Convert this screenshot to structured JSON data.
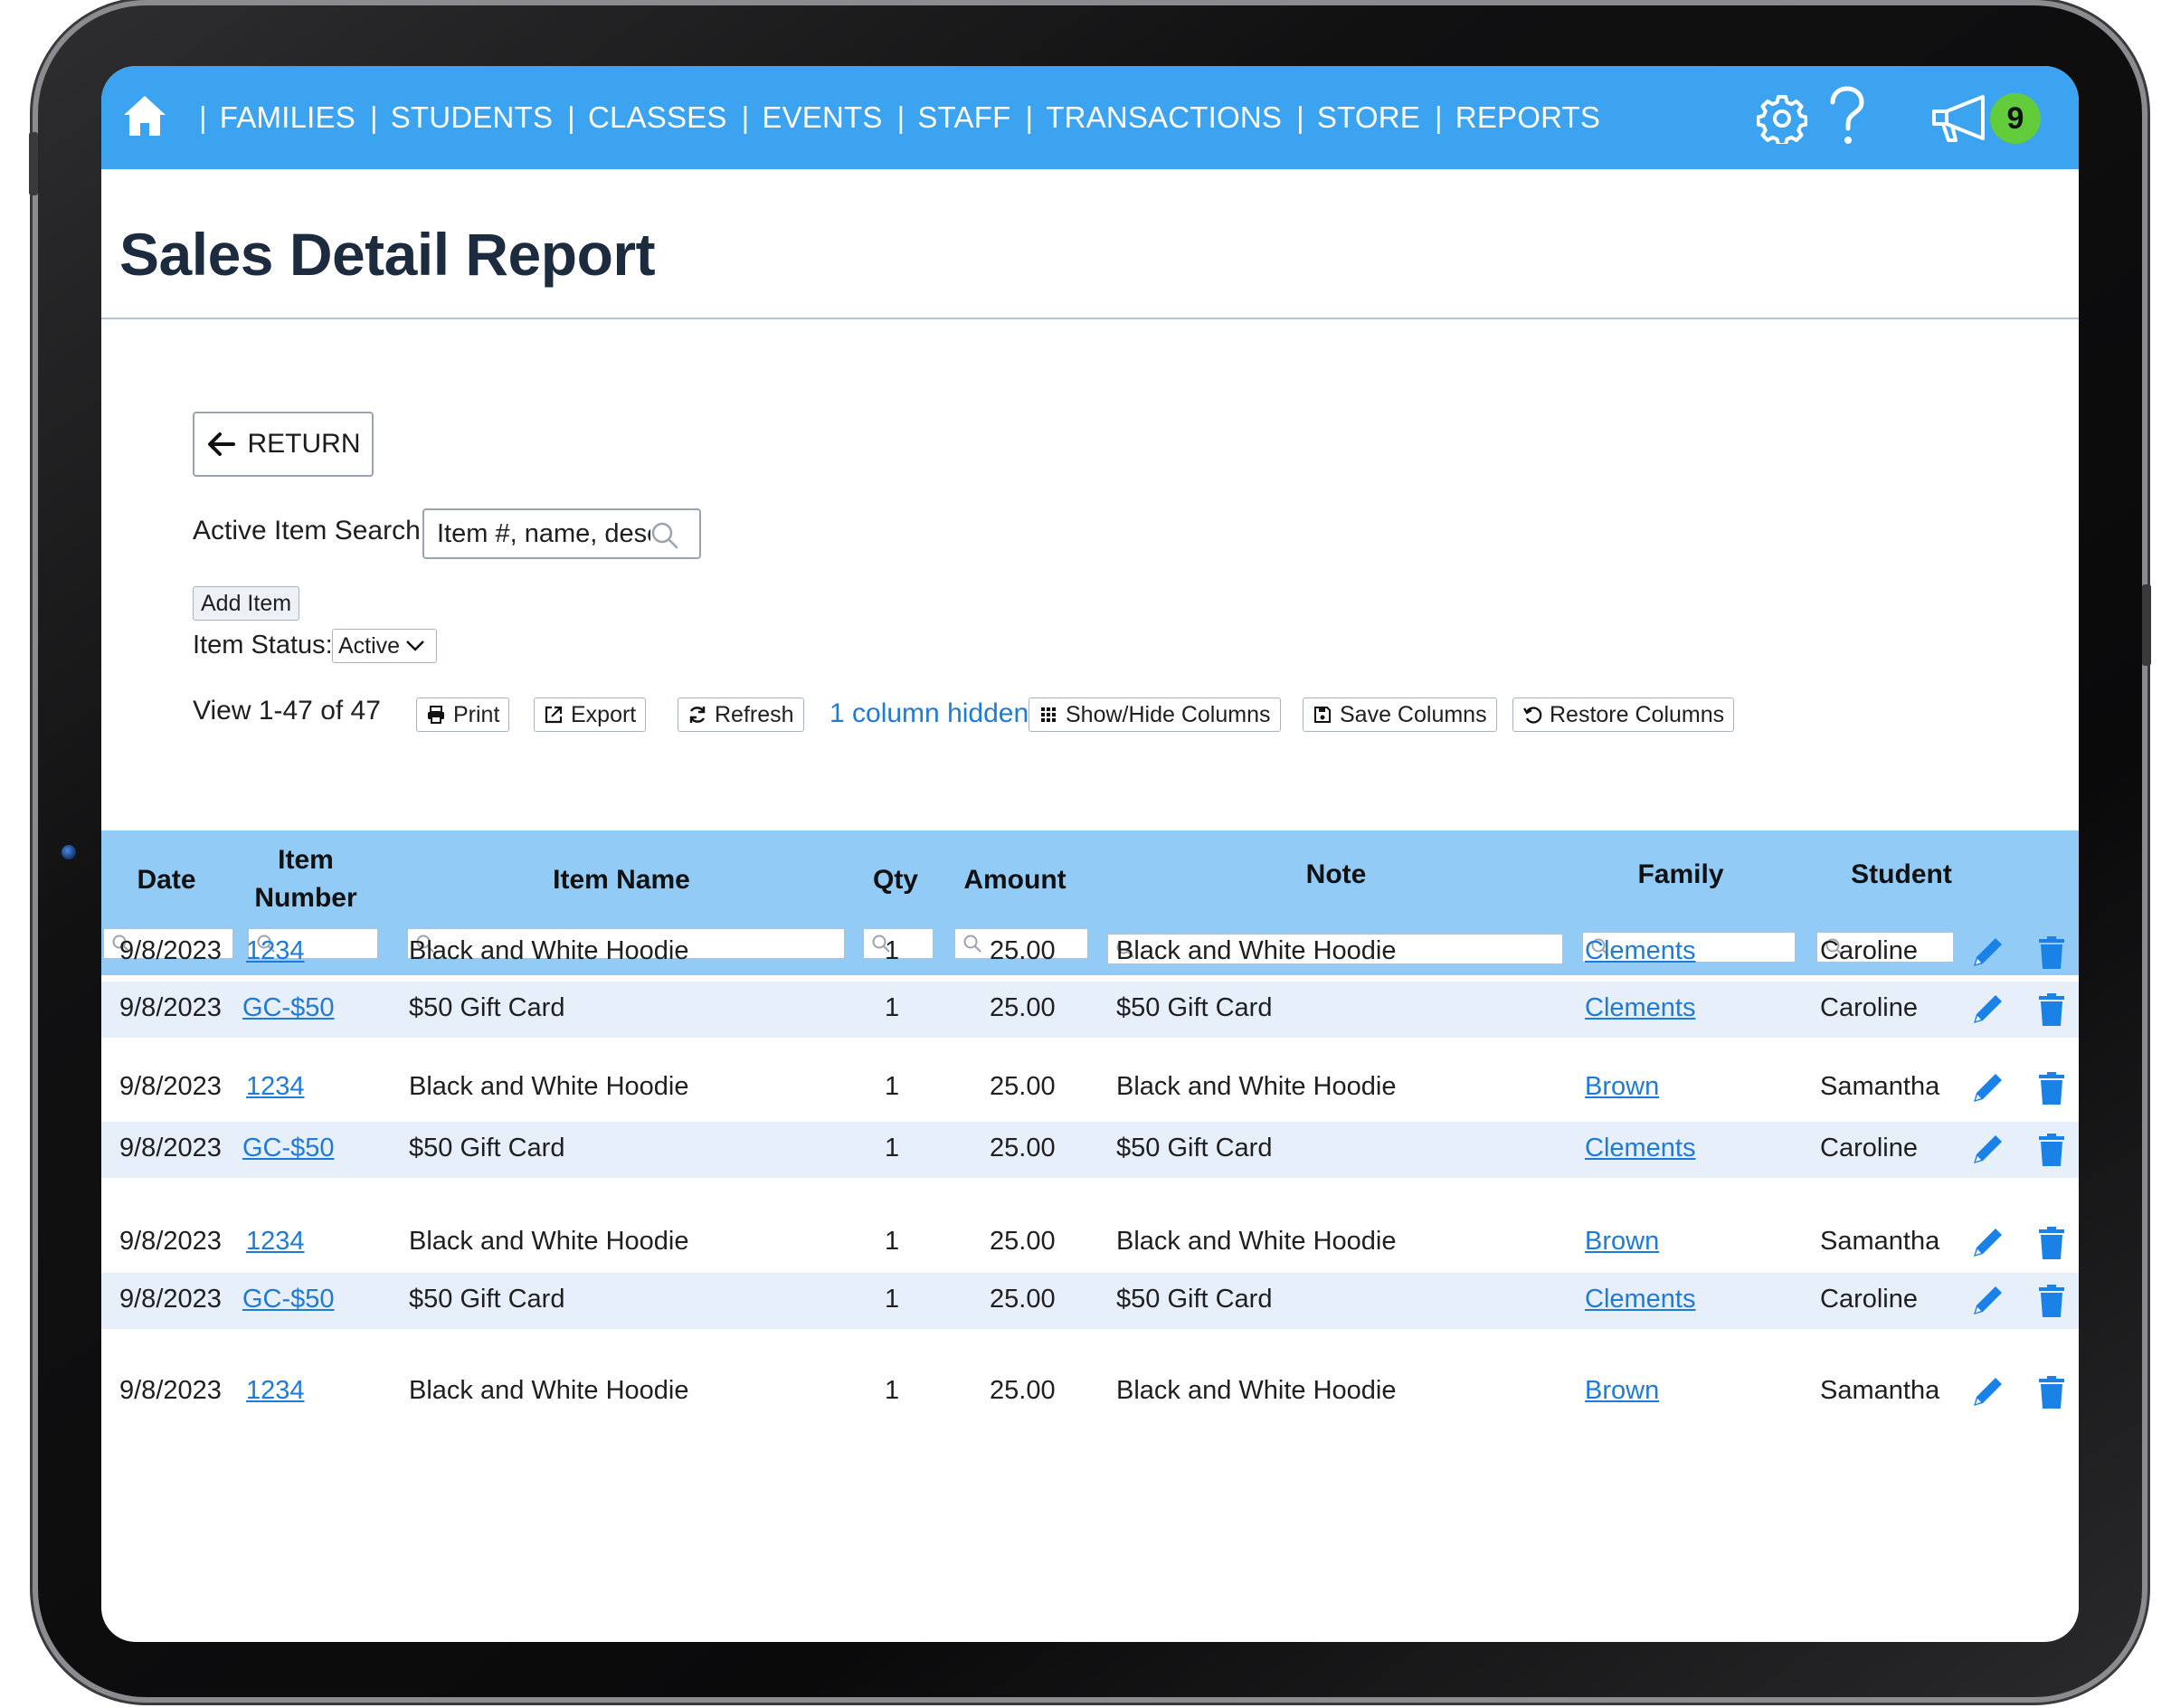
{
  "nav": {
    "items": [
      "FAMILIES",
      "STUDENTS",
      "CLASSES",
      "EVENTS",
      "STAFF",
      "TRANSACTIONS",
      "STORE",
      "REPORTS"
    ],
    "separator": "|",
    "notification_count": "9"
  },
  "page": {
    "title": "Sales Detail Report"
  },
  "controls": {
    "return_label": "RETURN",
    "search_label": "Active Item Search:",
    "search_placeholder": "Item #, name, desc",
    "add_item_label": "Add Item",
    "status_label": "Item Status:",
    "status_value": "Active",
    "view_count": "View 1-47 of 47",
    "print_label": "Print",
    "export_label": "Export",
    "refresh_label": "Refresh",
    "columns_hidden": "1 column hidden",
    "show_hide_label": "Show/Hide Columns",
    "save_columns_label": "Save Columns",
    "restore_columns_label": "Restore Columns"
  },
  "table": {
    "headers": {
      "date": "Date",
      "item_number_1": "Item",
      "item_number_2": "Number",
      "item_name": "Item Name",
      "qty": "Qty",
      "amount": "Amount",
      "note": "Note",
      "family": "Family",
      "student": "Student"
    },
    "rows": [
      {
        "date": "9/8/2023",
        "item_number": "1234",
        "item_name": "Black and White Hoodie",
        "qty": "1",
        "amount": "25.00",
        "note": "Black and White Hoodie",
        "family": "Clements",
        "student": "Caroline"
      },
      {
        "date": "9/8/2023",
        "item_number": "GC-$50",
        "item_name": "$50 Gift Card",
        "qty": "1",
        "amount": "25.00",
        "note": "$50 Gift Card",
        "family": "Clements",
        "student": "Caroline"
      },
      {
        "date": "9/8/2023",
        "item_number": "1234",
        "item_name": "Black and White Hoodie",
        "qty": "1",
        "amount": "25.00",
        "note": "Black and White Hoodie",
        "family": "Brown",
        "student": "Samantha"
      },
      {
        "date": "9/8/2023",
        "item_number": "GC-$50",
        "item_name": "$50 Gift Card",
        "qty": "1",
        "amount": "25.00",
        "note": "$50 Gift Card",
        "family": "Clements",
        "student": "Caroline"
      },
      {
        "date": "9/8/2023",
        "item_number": "1234",
        "item_name": "Black and White Hoodie",
        "qty": "1",
        "amount": "25.00",
        "note": "Black and White Hoodie",
        "family": "Brown",
        "student": "Samantha"
      },
      {
        "date": "9/8/2023",
        "item_number": "GC-$50",
        "item_name": "$50 Gift Card",
        "qty": "1",
        "amount": "25.00",
        "note": "$50 Gift Card",
        "family": "Clements",
        "student": "Caroline"
      },
      {
        "date": "9/8/2023",
        "item_number": "1234",
        "item_name": "Black and White Hoodie",
        "qty": "1",
        "amount": "25.00",
        "note": "Black and White Hoodie",
        "family": "Brown",
        "student": "Samantha"
      }
    ]
  },
  "icons": {
    "home": "home-icon",
    "settings": "gear-icon",
    "help": "question-icon",
    "announcements": "megaphone-icon",
    "return": "arrow-left-icon",
    "search": "search-icon",
    "dropdown": "chevron-down-icon",
    "print": "printer-icon",
    "export": "export-icon",
    "refresh": "refresh-icon",
    "show_hide": "grid-icon",
    "save": "save-icon",
    "restore": "restore-icon",
    "edit": "pencil-icon",
    "delete": "trash-icon"
  },
  "colors": {
    "nav_bar": "#3ba3f0",
    "table_header": "#91cbf6",
    "row_alt": "#e7effb",
    "link": "#1f7bd6",
    "action_icon": "#1a82e6",
    "notification_badge": "#63cc3b",
    "title": "#1d2b3f"
  }
}
